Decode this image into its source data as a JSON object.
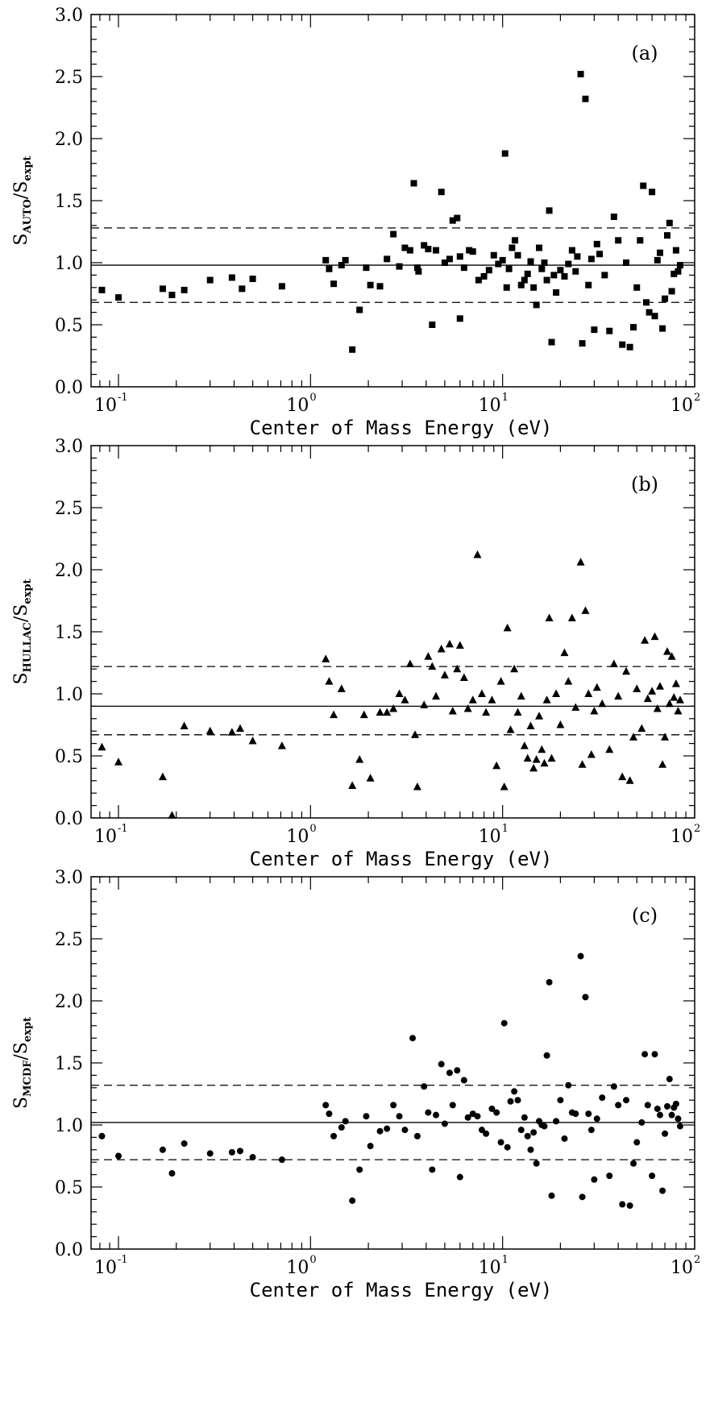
{
  "chart_data": [
    {
      "type": "scatter",
      "marker": "square",
      "panel_label": "(a)",
      "xlabel": "Center of Mass Energy (eV)",
      "ylabel": {
        "main": "S",
        "sub": "AUTO",
        "sep": "/",
        "main2": "S",
        "sub2": "expt"
      },
      "xscale": "log",
      "xlim": [
        0.072,
        100
      ],
      "ylim": [
        0,
        3
      ],
      "yticks": [
        "0.0",
        "0.5",
        "1.0",
        "1.5",
        "2.0",
        "2.5",
        "3.0"
      ],
      "xticks": [
        {
          "base": "10",
          "exp": "-1"
        },
        {
          "base": "10",
          "exp": "0"
        },
        {
          "base": "10",
          "exp": "1"
        },
        {
          "base": "10",
          "exp": "2"
        }
      ],
      "mean": 0.98,
      "band": [
        0.68,
        1.28
      ],
      "points": [
        [
          0.082,
          0.78
        ],
        [
          0.1,
          0.72
        ],
        [
          0.17,
          0.79
        ],
        [
          0.19,
          0.74
        ],
        [
          0.22,
          0.78
        ],
        [
          0.3,
          0.86
        ],
        [
          0.39,
          0.88
        ],
        [
          0.44,
          0.79
        ],
        [
          0.5,
          0.87
        ],
        [
          0.71,
          0.81
        ],
        [
          1.2,
          1.02
        ],
        [
          1.25,
          0.95
        ],
        [
          1.32,
          0.83
        ],
        [
          1.45,
          0.98
        ],
        [
          1.52,
          1.02
        ],
        [
          1.65,
          0.3
        ],
        [
          1.8,
          0.62
        ],
        [
          1.95,
          0.96
        ],
        [
          2.05,
          0.82
        ],
        [
          2.3,
          0.81
        ],
        [
          2.5,
          1.03
        ],
        [
          2.7,
          1.23
        ],
        [
          2.9,
          0.97
        ],
        [
          3.1,
          1.12
        ],
        [
          3.3,
          1.1
        ],
        [
          3.45,
          1.64
        ],
        [
          3.6,
          0.96
        ],
        [
          3.65,
          0.93
        ],
        [
          3.9,
          1.14
        ],
        [
          4.1,
          1.11
        ],
        [
          4.3,
          0.5
        ],
        [
          4.5,
          1.1
        ],
        [
          4.8,
          1.57
        ],
        [
          5.0,
          1.0
        ],
        [
          5.3,
          1.03
        ],
        [
          5.5,
          1.34
        ],
        [
          5.8,
          1.36
        ],
        [
          6.0,
          0.55
        ],
        [
          6.0,
          1.05
        ],
        [
          6.3,
          0.96
        ],
        [
          6.7,
          1.1
        ],
        [
          7.0,
          1.09
        ],
        [
          7.5,
          0.86
        ],
        [
          8.0,
          0.89
        ],
        [
          8.5,
          0.94
        ],
        [
          9.0,
          1.06
        ],
        [
          9.5,
          0.99
        ],
        [
          10.0,
          1.02
        ],
        [
          10.3,
          1.88
        ],
        [
          10.5,
          0.8
        ],
        [
          10.8,
          0.95
        ],
        [
          11.2,
          1.12
        ],
        [
          11.6,
          1.18
        ],
        [
          12.0,
          1.06
        ],
        [
          12.5,
          0.82
        ],
        [
          13.0,
          0.86
        ],
        [
          13.5,
          0.91
        ],
        [
          14.0,
          1.01
        ],
        [
          14.5,
          0.8
        ],
        [
          15.0,
          0.66
        ],
        [
          15.5,
          1.12
        ],
        [
          16.0,
          0.95
        ],
        [
          16.5,
          1.0
        ],
        [
          17.0,
          0.86
        ],
        [
          17.5,
          1.42
        ],
        [
          18.0,
          0.36
        ],
        [
          18.5,
          0.9
        ],
        [
          19.0,
          0.76
        ],
        [
          20.0,
          0.94
        ],
        [
          21.0,
          0.89
        ],
        [
          22.0,
          0.99
        ],
        [
          23.0,
          1.1
        ],
        [
          24.0,
          0.93
        ],
        [
          24.5,
          1.05
        ],
        [
          25.5,
          2.52
        ],
        [
          26.0,
          0.35
        ],
        [
          27.0,
          2.32
        ],
        [
          28.0,
          0.82
        ],
        [
          29.0,
          1.03
        ],
        [
          30.0,
          0.46
        ],
        [
          31.0,
          1.15
        ],
        [
          32.0,
          1.07
        ],
        [
          34.0,
          0.9
        ],
        [
          36.0,
          0.45
        ],
        [
          38.0,
          1.37
        ],
        [
          40.0,
          1.18
        ],
        [
          42.0,
          0.34
        ],
        [
          44.0,
          1.0
        ],
        [
          46.0,
          0.32
        ],
        [
          48.0,
          0.48
        ],
        [
          50.0,
          0.8
        ],
        [
          52.0,
          1.18
        ],
        [
          54.0,
          1.62
        ],
        [
          56.0,
          0.68
        ],
        [
          58.0,
          0.6
        ],
        [
          60.0,
          1.57
        ],
        [
          62.0,
          0.57
        ],
        [
          64.0,
          1.02
        ],
        [
          66.0,
          1.08
        ],
        [
          68.0,
          0.47
        ],
        [
          70.0,
          0.71
        ],
        [
          72.0,
          1.22
        ],
        [
          74.0,
          1.32
        ],
        [
          76.0,
          0.77
        ],
        [
          78.0,
          0.91
        ],
        [
          80.0,
          1.1
        ],
        [
          82.0,
          0.93
        ],
        [
          84.0,
          0.98
        ]
      ]
    },
    {
      "type": "scatter",
      "marker": "triangle",
      "panel_label": "(b)",
      "xlabel": "Center of Mass Energy (eV)",
      "ylabel": {
        "main": "S",
        "sub": "HULLAC",
        "sep": "/",
        "main2": "S",
        "sub2": "expt"
      },
      "xscale": "log",
      "xlim": [
        0.072,
        100
      ],
      "ylim": [
        0,
        3
      ],
      "yticks": [
        "0.0",
        "0.5",
        "1.0",
        "1.5",
        "2.0",
        "2.5",
        "3.0"
      ],
      "xticks": [
        {
          "base": "10",
          "exp": "-1"
        },
        {
          "base": "10",
          "exp": "0"
        },
        {
          "base": "10",
          "exp": "1"
        },
        {
          "base": "10",
          "exp": "2"
        }
      ],
      "mean": 0.9,
      "band": [
        0.67,
        1.22
      ],
      "points": [
        [
          0.082,
          0.57
        ],
        [
          0.1,
          0.45
        ],
        [
          0.17,
          0.33
        ],
        [
          0.19,
          0.02
        ],
        [
          0.22,
          0.74
        ],
        [
          0.3,
          0.7
        ],
        [
          0.39,
          0.69
        ],
        [
          0.43,
          0.72
        ],
        [
          0.5,
          0.62
        ],
        [
          0.71,
          0.58
        ],
        [
          1.2,
          1.28
        ],
        [
          1.25,
          1.1
        ],
        [
          1.32,
          0.83
        ],
        [
          1.45,
          1.04
        ],
        [
          1.65,
          0.26
        ],
        [
          1.8,
          0.47
        ],
        [
          1.9,
          0.83
        ],
        [
          2.05,
          0.32
        ],
        [
          2.3,
          0.85
        ],
        [
          2.5,
          0.85
        ],
        [
          2.7,
          0.88
        ],
        [
          2.9,
          1.0
        ],
        [
          3.1,
          0.95
        ],
        [
          3.3,
          1.24
        ],
        [
          3.5,
          0.67
        ],
        [
          3.6,
          0.25
        ],
        [
          3.9,
          0.91
        ],
        [
          4.1,
          1.3
        ],
        [
          4.3,
          1.22
        ],
        [
          4.5,
          0.98
        ],
        [
          4.8,
          1.36
        ],
        [
          5.0,
          1.15
        ],
        [
          5.3,
          1.4
        ],
        [
          5.5,
          0.86
        ],
        [
          5.8,
          1.2
        ],
        [
          6.0,
          1.39
        ],
        [
          6.3,
          1.13
        ],
        [
          6.6,
          0.88
        ],
        [
          7.0,
          0.95
        ],
        [
          7.4,
          2.12
        ],
        [
          7.8,
          1.0
        ],
        [
          8.2,
          0.85
        ],
        [
          8.8,
          0.95
        ],
        [
          9.3,
          0.42
        ],
        [
          9.8,
          1.1
        ],
        [
          10.2,
          0.25
        ],
        [
          10.6,
          1.53
        ],
        [
          11.0,
          0.71
        ],
        [
          11.5,
          1.2
        ],
        [
          12.0,
          0.85
        ],
        [
          12.5,
          0.98
        ],
        [
          13.0,
          0.58
        ],
        [
          13.5,
          0.48
        ],
        [
          14.0,
          0.74
        ],
        [
          14.5,
          0.4
        ],
        [
          15.0,
          0.47
        ],
        [
          15.5,
          0.82
        ],
        [
          16.0,
          0.55
        ],
        [
          16.5,
          0.44
        ],
        [
          17.0,
          0.95
        ],
        [
          17.5,
          1.61
        ],
        [
          18.0,
          0.48
        ],
        [
          19.0,
          1.0
        ],
        [
          20.0,
          0.75
        ],
        [
          21.0,
          1.33
        ],
        [
          22.0,
          1.1
        ],
        [
          23.0,
          1.61
        ],
        [
          24.0,
          0.89
        ],
        [
          25.5,
          2.06
        ],
        [
          26.0,
          0.43
        ],
        [
          27.0,
          1.67
        ],
        [
          28.0,
          1.0
        ],
        [
          29.0,
          0.51
        ],
        [
          30.0,
          0.86
        ],
        [
          31.0,
          1.05
        ],
        [
          33.0,
          0.92
        ],
        [
          36.0,
          0.55
        ],
        [
          38.0,
          1.24
        ],
        [
          40.0,
          0.98
        ],
        [
          42.0,
          0.33
        ],
        [
          44.0,
          1.18
        ],
        [
          46.0,
          0.3
        ],
        [
          48.0,
          0.65
        ],
        [
          50.0,
          1.04
        ],
        [
          53.0,
          0.72
        ],
        [
          55.0,
          1.43
        ],
        [
          57.0,
          0.96
        ],
        [
          60.0,
          1.02
        ],
        [
          62.0,
          1.46
        ],
        [
          64.0,
          0.88
        ],
        [
          66.0,
          1.06
        ],
        [
          68.0,
          0.43
        ],
        [
          70.0,
          0.65
        ],
        [
          72.0,
          1.34
        ],
        [
          74.0,
          0.92
        ],
        [
          76.0,
          1.3
        ],
        [
          78.0,
          0.97
        ],
        [
          80.0,
          1.08
        ],
        [
          82.0,
          0.86
        ],
        [
          84.0,
          0.95
        ]
      ]
    },
    {
      "type": "scatter",
      "marker": "circle",
      "panel_label": "(c)",
      "xlabel": "Center of Mass Energy (eV)",
      "ylabel": {
        "main": "S",
        "sub": "MCDF",
        "sep": "/",
        "main2": "S",
        "sub2": "expt"
      },
      "xscale": "log",
      "xlim": [
        0.072,
        100
      ],
      "ylim": [
        0,
        3
      ],
      "yticks": [
        "0.0",
        "0.5",
        "1.0",
        "1.5",
        "2.0",
        "2.5",
        "3.0"
      ],
      "xticks": [
        {
          "base": "10",
          "exp": "-1"
        },
        {
          "base": "10",
          "exp": "0"
        },
        {
          "base": "10",
          "exp": "1"
        },
        {
          "base": "10",
          "exp": "2"
        }
      ],
      "mean": 1.02,
      "band": [
        0.72,
        1.32
      ],
      "points": [
        [
          0.082,
          0.91
        ],
        [
          0.1,
          0.75
        ],
        [
          0.17,
          0.8
        ],
        [
          0.19,
          0.61
        ],
        [
          0.22,
          0.85
        ],
        [
          0.3,
          0.77
        ],
        [
          0.39,
          0.78
        ],
        [
          0.43,
          0.79
        ],
        [
          0.5,
          0.74
        ],
        [
          0.71,
          0.72
        ],
        [
          1.2,
          1.16
        ],
        [
          1.25,
          1.09
        ],
        [
          1.32,
          0.91
        ],
        [
          1.45,
          0.98
        ],
        [
          1.52,
          1.03
        ],
        [
          1.65,
          0.39
        ],
        [
          1.8,
          0.64
        ],
        [
          1.95,
          1.07
        ],
        [
          2.05,
          0.83
        ],
        [
          2.3,
          0.95
        ],
        [
          2.5,
          0.97
        ],
        [
          2.7,
          1.16
        ],
        [
          2.9,
          1.07
        ],
        [
          3.1,
          0.96
        ],
        [
          3.4,
          1.7
        ],
        [
          3.6,
          0.91
        ],
        [
          3.9,
          1.31
        ],
        [
          4.1,
          1.1
        ],
        [
          4.3,
          0.64
        ],
        [
          4.5,
          1.08
        ],
        [
          4.8,
          1.49
        ],
        [
          5.0,
          1.01
        ],
        [
          5.3,
          1.42
        ],
        [
          5.5,
          1.16
        ],
        [
          5.8,
          1.44
        ],
        [
          6.0,
          0.58
        ],
        [
          6.3,
          1.36
        ],
        [
          6.6,
          1.06
        ],
        [
          7.0,
          1.09
        ],
        [
          7.4,
          1.07
        ],
        [
          7.8,
          0.96
        ],
        [
          8.2,
          0.93
        ],
        [
          8.8,
          1.13
        ],
        [
          9.3,
          1.1
        ],
        [
          9.8,
          0.86
        ],
        [
          10.2,
          1.82
        ],
        [
          10.6,
          0.82
        ],
        [
          11.0,
          1.19
        ],
        [
          11.5,
          1.27
        ],
        [
          12.0,
          1.2
        ],
        [
          12.5,
          0.96
        ],
        [
          13.0,
          1.06
        ],
        [
          13.5,
          0.91
        ],
        [
          14.0,
          0.8
        ],
        [
          14.5,
          0.94
        ],
        [
          15.0,
          0.69
        ],
        [
          15.5,
          1.03
        ],
        [
          16.0,
          1.0
        ],
        [
          16.5,
          0.99
        ],
        [
          17.0,
          1.56
        ],
        [
          17.5,
          2.15
        ],
        [
          18.0,
          0.43
        ],
        [
          19.0,
          1.03
        ],
        [
          20.0,
          1.2
        ],
        [
          21.0,
          0.89
        ],
        [
          22.0,
          1.32
        ],
        [
          23.0,
          1.1
        ],
        [
          24.0,
          1.09
        ],
        [
          25.5,
          2.36
        ],
        [
          26.0,
          0.42
        ],
        [
          27.0,
          2.03
        ],
        [
          28.0,
          1.09
        ],
        [
          29.0,
          0.96
        ],
        [
          30.0,
          0.56
        ],
        [
          31.0,
          1.05
        ],
        [
          33.0,
          1.22
        ],
        [
          36.0,
          0.59
        ],
        [
          38.0,
          1.31
        ],
        [
          40.0,
          1.16
        ],
        [
          42.0,
          0.36
        ],
        [
          44.0,
          1.2
        ],
        [
          46.0,
          0.35
        ],
        [
          48.0,
          0.69
        ],
        [
          50.0,
          0.86
        ],
        [
          53.0,
          1.02
        ],
        [
          55.0,
          1.57
        ],
        [
          57.0,
          1.16
        ],
        [
          60.0,
          0.59
        ],
        [
          62.0,
          1.57
        ],
        [
          64.0,
          1.13
        ],
        [
          66.0,
          1.08
        ],
        [
          68.0,
          0.47
        ],
        [
          70.0,
          0.93
        ],
        [
          72.0,
          1.15
        ],
        [
          74.0,
          1.37
        ],
        [
          76.0,
          1.08
        ],
        [
          78.0,
          1.14
        ],
        [
          80.0,
          1.17
        ],
        [
          82.0,
          1.05
        ],
        [
          84.0,
          0.99
        ]
      ]
    }
  ]
}
